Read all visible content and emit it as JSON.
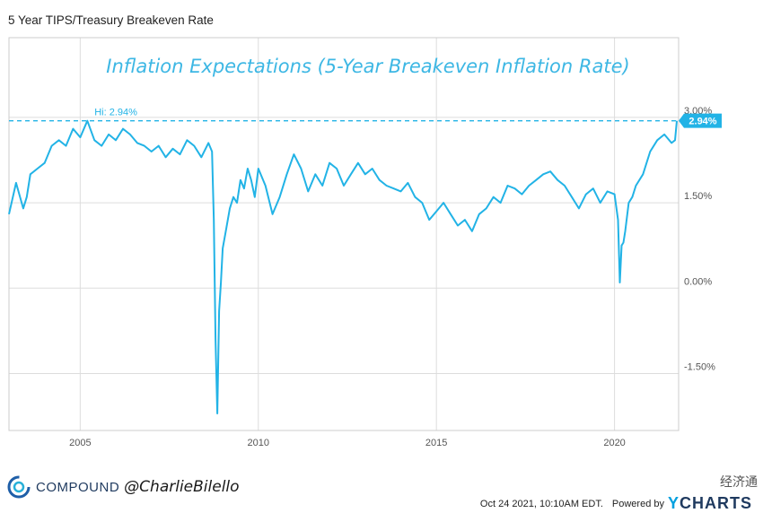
{
  "header": {
    "title": "5 Year TIPS/Treasury Breakeven Rate"
  },
  "chart_data": {
    "type": "line",
    "title": "Inflation Expectations (5-Year Breakeven Inflation Rate)",
    "series": [
      {
        "name": "",
        "x": [
          2003.0,
          2003.2,
          2003.4,
          2003.5,
          2003.6,
          2003.8,
          2004.0,
          2004.2,
          2004.4,
          2004.6,
          2004.8,
          2005.0,
          2005.2,
          2005.4,
          2005.6,
          2005.8,
          2006.0,
          2006.2,
          2006.4,
          2006.6,
          2006.8,
          2007.0,
          2007.2,
          2007.4,
          2007.6,
          2007.8,
          2008.0,
          2008.2,
          2008.4,
          2008.6,
          2008.7,
          2008.75,
          2008.8,
          2008.85,
          2008.9,
          2008.95,
          2009.0,
          2009.1,
          2009.2,
          2009.3,
          2009.4,
          2009.5,
          2009.6,
          2009.7,
          2009.8,
          2009.9,
          2010.0,
          2010.2,
          2010.4,
          2010.6,
          2010.8,
          2011.0,
          2011.2,
          2011.4,
          2011.6,
          2011.8,
          2012.0,
          2012.2,
          2012.4,
          2012.6,
          2012.8,
          2013.0,
          2013.2,
          2013.4,
          2013.6,
          2013.8,
          2014.0,
          2014.2,
          2014.4,
          2014.6,
          2014.8,
          2015.0,
          2015.2,
          2015.4,
          2015.6,
          2015.8,
          2016.0,
          2016.2,
          2016.4,
          2016.6,
          2016.8,
          2017.0,
          2017.2,
          2017.4,
          2017.6,
          2017.8,
          2018.0,
          2018.2,
          2018.4,
          2018.6,
          2018.8,
          2019.0,
          2019.2,
          2019.4,
          2019.6,
          2019.8,
          2020.0,
          2020.1,
          2020.15,
          2020.2,
          2020.25,
          2020.3,
          2020.4,
          2020.5,
          2020.6,
          2020.8,
          2021.0,
          2021.2,
          2021.4,
          2021.6,
          2021.7,
          2021.75
        ],
        "values": [
          1.3,
          1.85,
          1.4,
          1.6,
          2.0,
          2.1,
          2.2,
          2.5,
          2.6,
          2.5,
          2.8,
          2.65,
          2.94,
          2.6,
          2.5,
          2.7,
          2.6,
          2.8,
          2.7,
          2.55,
          2.5,
          2.4,
          2.5,
          2.3,
          2.45,
          2.35,
          2.6,
          2.5,
          2.3,
          2.55,
          2.4,
          1.2,
          -0.9,
          -2.2,
          -0.4,
          0.1,
          0.7,
          1.05,
          1.4,
          1.6,
          1.5,
          1.9,
          1.75,
          2.1,
          1.9,
          1.6,
          2.1,
          1.8,
          1.3,
          1.6,
          2.0,
          2.35,
          2.1,
          1.7,
          2.0,
          1.8,
          2.2,
          2.1,
          1.8,
          2.0,
          2.2,
          2.0,
          2.1,
          1.9,
          1.8,
          1.75,
          1.7,
          1.85,
          1.6,
          1.5,
          1.2,
          1.35,
          1.5,
          1.3,
          1.1,
          1.2,
          1.0,
          1.3,
          1.4,
          1.6,
          1.5,
          1.8,
          1.75,
          1.65,
          1.8,
          1.9,
          2.0,
          2.05,
          1.9,
          1.8,
          1.6,
          1.4,
          1.65,
          1.75,
          1.5,
          1.7,
          1.65,
          1.2,
          0.1,
          0.75,
          0.8,
          1.0,
          1.5,
          1.6,
          1.8,
          2.0,
          2.4,
          2.6,
          2.7,
          2.55,
          2.6,
          2.94
        ]
      }
    ],
    "xticks": [
      "2005",
      "2010",
      "2015",
      "2020"
    ],
    "xtick_values": [
      2005,
      2010,
      2015,
      2020
    ],
    "yticks": [
      "3.00%",
      "1.50%",
      "0.00%",
      "-1.50%"
    ],
    "ytick_values": [
      3.0,
      1.5,
      0.0,
      -1.5
    ],
    "xlim": [
      2003.0,
      2021.8
    ],
    "ylim": [
      -2.5,
      4.4
    ],
    "grid": true,
    "annotations": {
      "high_label": "Hi: 2.94%",
      "high_value": 2.94,
      "last_label": "2.94%"
    },
    "colors": {
      "line": "#22b3e6",
      "grid": "#dddddd",
      "badge": "#22b3e6",
      "title": "#3db7e4"
    }
  },
  "footer": {
    "brand": "COMPOUND",
    "handle": "@CharlieBilello",
    "timestamp": "Oct 24 2021, 10:10AM EDT.",
    "powered_by": "Powered by",
    "logo_text_y": "Y",
    "logo_text_rest": "CHARTS",
    "watermark": "经济通"
  }
}
